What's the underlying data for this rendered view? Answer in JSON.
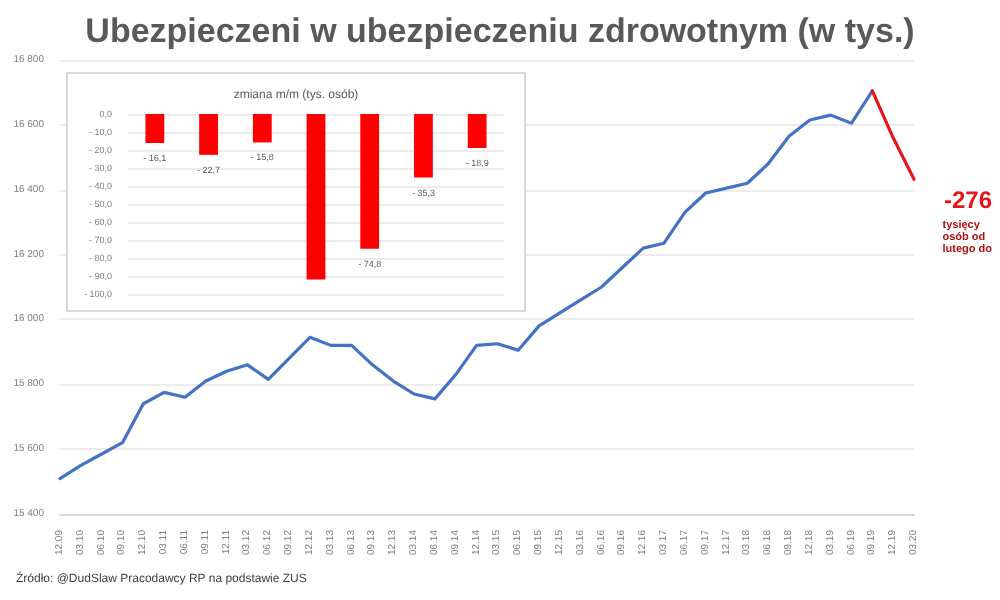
{
  "chart_data": [
    {
      "type": "line",
      "title": "Ubezpieczeni w ubezpieczeniu zdrowotnym (w tys.)",
      "categories": [
        "12.09",
        "03.10",
        "06.10",
        "09.10",
        "12.10",
        "03.11",
        "06.11",
        "09.11",
        "12.11",
        "03.12",
        "06.12",
        "09.12",
        "12.12",
        "03.13",
        "06.13",
        "09.13",
        "12.13",
        "03.14",
        "06.14",
        "09.14",
        "12.14",
        "03.15",
        "06.15",
        "09.15",
        "12.15",
        "03.16",
        "06.16",
        "09.16",
        "12.16",
        "03.17",
        "06.17",
        "09.17",
        "12.17",
        "03.18",
        "06.18",
        "09.18",
        "12.18",
        "03.19",
        "06.19",
        "09.19",
        "12.19",
        "03.20"
      ],
      "series": [
        {
          "color": "#4472c4",
          "values": [
            15509,
            15550,
            15585,
            15620,
            15740,
            15775,
            15760,
            15810,
            15840,
            15860,
            15815,
            15880,
            15945,
            15920,
            15920,
            15860,
            15810,
            15770,
            15755,
            15830,
            15920,
            15925,
            15905,
            15980,
            16020,
            16060,
            16100,
            16160,
            16220,
            16235,
            16330,
            16390,
            16405,
            16420,
            16480,
            16565,
            16615,
            16630,
            16605,
            16705,
            null,
            null
          ]
        },
        {
          "color": "#e8141b",
          "values": [
            null,
            null,
            null,
            null,
            null,
            null,
            null,
            null,
            null,
            null,
            null,
            null,
            null,
            null,
            null,
            null,
            null,
            null,
            null,
            null,
            null,
            null,
            null,
            null,
            null,
            null,
            null,
            null,
            null,
            null,
            null,
            null,
            null,
            null,
            null,
            null,
            null,
            null,
            null,
            16705,
            16560,
            16432
          ]
        }
      ],
      "ylim": [
        15400,
        16800
      ],
      "yticks": [
        {
          "value": 15400,
          "label": "15 400"
        },
        {
          "value": 15600,
          "label": "15 600"
        },
        {
          "value": 15800,
          "label": "15 800"
        },
        {
          "value": 16000,
          "label": "16 000"
        },
        {
          "value": 16200,
          "label": "16 200"
        },
        {
          "value": 16400,
          "label": "16 400"
        },
        {
          "value": 16600,
          "label": "16 600"
        },
        {
          "value": 16800,
          "label": "16 800"
        }
      ],
      "grid": "y",
      "marker": "none",
      "line_style": "solid",
      "annotations": [
        "-276",
        "tysięcy osób od lutego do",
        "Źródło: @DudSlaw Pracodawcy RP na podstawie ZUS"
      ]
    },
    {
      "type": "bar",
      "title": "zmiana m/m (tys. osób)",
      "categories": [
        null,
        null,
        null,
        null,
        null,
        null,
        null
      ],
      "values": [
        -16.1,
        -22.7,
        -15.8,
        -92,
        -74.8,
        -35.3,
        -18.9
      ],
      "value_labels": [
        "- 16,1",
        "- 22,7",
        "- 15,8",
        null,
        "- 74,8",
        "- 35,3",
        "- 18,9"
      ],
      "color": "#ff0000",
      "ylim": [
        -100,
        0
      ],
      "yticks": [
        {
          "value": 0,
          "label": "0,0"
        },
        {
          "value": -10,
          "label": "- 10,0"
        },
        {
          "value": -20,
          "label": "- 20,0"
        },
        {
          "value": -30,
          "label": "- 30,0"
        },
        {
          "value": -40,
          "label": "- 40,0"
        },
        {
          "value": -50,
          "label": "- 50,0"
        },
        {
          "value": -60,
          "label": "- 60,0"
        },
        {
          "value": -70,
          "label": "- 70,0"
        },
        {
          "value": -80,
          "label": "- 80,0"
        },
        {
          "value": -90,
          "label": "- 90,0"
        },
        {
          "value": -100,
          "label": "- 100,0"
        }
      ],
      "grid": "y",
      "tick_labels": "y"
    }
  ]
}
